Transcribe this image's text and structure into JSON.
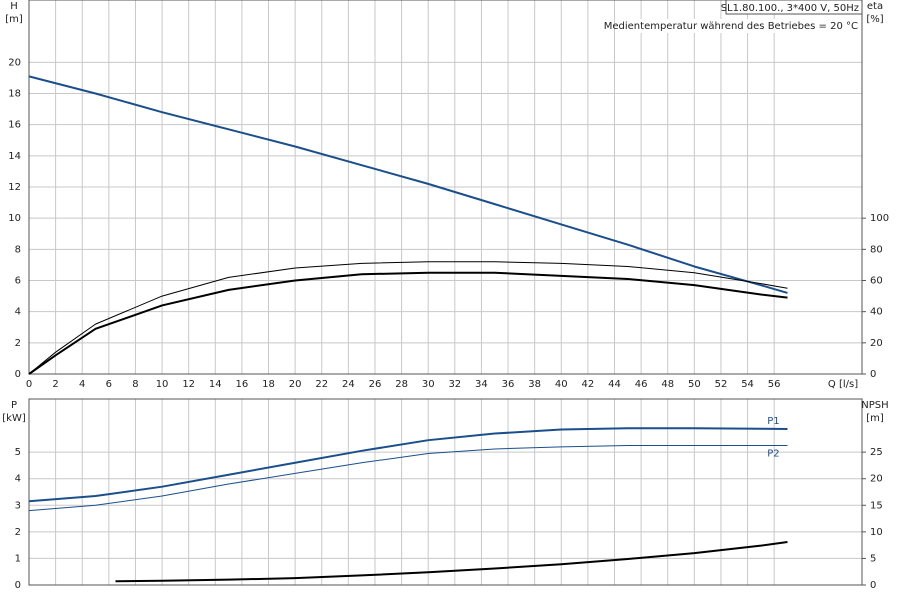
{
  "chart_data": [
    {
      "type": "line",
      "annotations": [
        "SL1.80.100., 3*400 V, 50Hz",
        "Medientemperatur während des Betriebes = 20 °C"
      ],
      "y_label": "H",
      "y_unit": "[m]",
      "y2_label": "eta",
      "y2_unit": "[%]",
      "x_label": "Q [l/s]",
      "xlim": [
        0,
        62.6
      ],
      "xticks": [
        0,
        2,
        4,
        6,
        8,
        10,
        12,
        14,
        16,
        18,
        20,
        22,
        24,
        26,
        28,
        30,
        32,
        34,
        36,
        38,
        40,
        42,
        44,
        46,
        48,
        50,
        52,
        54,
        56
      ],
      "ylim": [
        0,
        24
      ],
      "yticks": [
        0,
        2,
        4,
        6,
        8,
        10,
        12,
        14,
        16,
        18,
        20
      ],
      "y2lim": [
        0,
        240
      ],
      "y2ticks": [
        0,
        20,
        40,
        60,
        80,
        100
      ],
      "grid": true,
      "series": [
        {
          "color": "#1a4f8b",
          "width": 2,
          "x": [
            0,
            5,
            10,
            15,
            20,
            25,
            30,
            35,
            40,
            45,
            50,
            55,
            57
          ],
          "values": [
            19.1,
            18.0,
            16.8,
            15.7,
            14.6,
            13.4,
            12.2,
            10.9,
            9.6,
            8.3,
            6.9,
            5.7,
            5.2
          ]
        },
        {
          "color": "#000000",
          "width": 1,
          "axis": "y2",
          "x": [
            0,
            2,
            5,
            10,
            15,
            20,
            25,
            30,
            35,
            40,
            45,
            50,
            55,
            57
          ],
          "values": [
            0,
            14,
            32,
            50,
            62,
            68,
            71,
            72,
            72,
            71,
            69,
            65,
            58,
            55
          ]
        },
        {
          "color": "#000000",
          "width": 2,
          "axis": "y2",
          "x": [
            0,
            2,
            5,
            10,
            15,
            20,
            25,
            30,
            35,
            40,
            45,
            50,
            55,
            57
          ],
          "values": [
            0,
            12,
            29,
            44,
            54,
            60,
            64,
            65,
            65,
            63,
            61,
            57,
            51,
            49
          ]
        }
      ]
    },
    {
      "type": "line",
      "y_label": "P",
      "y_unit": "[kW]",
      "y2_label": "NPSH",
      "y2_unit": "[m]",
      "xlim": [
        0,
        62.6
      ],
      "ylim": [
        0,
        7
      ],
      "yticks": [
        0,
        1,
        2,
        3,
        4,
        5
      ],
      "y2lim": [
        0,
        35
      ],
      "y2ticks": [
        0,
        5,
        10,
        15,
        20,
        25
      ],
      "grid": true,
      "series": [
        {
          "name": "P1",
          "color": "#1a4f8b",
          "width": 2,
          "x": [
            0,
            5,
            10,
            15,
            20,
            25,
            30,
            35,
            40,
            45,
            50,
            55,
            57
          ],
          "values": [
            3.15,
            3.35,
            3.7,
            4.15,
            4.6,
            5.05,
            5.45,
            5.7,
            5.85,
            5.9,
            5.9,
            5.88,
            5.87
          ]
        },
        {
          "name": "P2",
          "color": "#1a4f8b",
          "width": 1,
          "x": [
            0,
            5,
            10,
            15,
            20,
            25,
            30,
            35,
            40,
            45,
            50,
            55,
            57
          ],
          "values": [
            2.8,
            3.0,
            3.35,
            3.8,
            4.2,
            4.6,
            4.95,
            5.12,
            5.2,
            5.25,
            5.25,
            5.25,
            5.25
          ]
        },
        {
          "color": "#000000",
          "width": 2,
          "axis": "y2",
          "x": [
            6.5,
            10,
            15,
            20,
            25,
            30,
            35,
            40,
            45,
            50,
            55,
            57
          ],
          "values": [
            0.7,
            0.8,
            1.0,
            1.3,
            1.8,
            2.4,
            3.1,
            3.9,
            4.9,
            6.0,
            7.4,
            8.1
          ]
        }
      ]
    }
  ]
}
